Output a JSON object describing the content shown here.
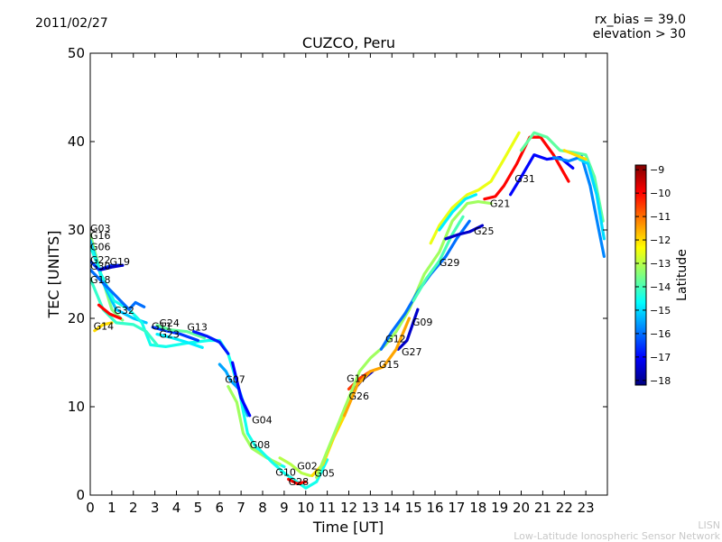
{
  "header": {
    "date": "2011/02/27",
    "rx_bias": "rx_bias = 39.0",
    "elevation": "elevation > 30",
    "title": "CUZCO, Peru"
  },
  "watermark": {
    "line1": "LISN",
    "line2": "Low-Latitude Ionospheric Sensor Network"
  },
  "chart_data": {
    "type": "scatter",
    "title": "CUZCO, Peru",
    "xlabel": "Time [UT]",
    "ylabel": "TEC [UNITS]",
    "xlim": [
      0,
      24
    ],
    "ylim": [
      0,
      50
    ],
    "xticks": [
      0,
      1,
      2,
      3,
      4,
      5,
      6,
      7,
      8,
      9,
      10,
      11,
      12,
      13,
      14,
      15,
      16,
      17,
      18,
      19,
      20,
      21,
      22,
      23
    ],
    "yticks": [
      0,
      10,
      20,
      30,
      40,
      50
    ],
    "grid": false,
    "colorbar": {
      "label": "Latitude",
      "range": [
        -18.2,
        -8.8
      ],
      "ticks": [
        -9,
        -10,
        -11,
        -12,
        -13,
        -14,
        -15,
        -16,
        -17,
        -18
      ],
      "tick_labels": [
        "−9",
        "−10",
        "−11",
        "−12",
        "−13",
        "−14",
        "−15",
        "−16",
        "−17",
        "−18"
      ],
      "colormap": "jet"
    },
    "series": [
      {
        "name": "G03",
        "lat": -13.5,
        "label_at": [
          0.0,
          29.8
        ],
        "points": [
          [
            0,
            29.5
          ],
          [
            0.5,
            25
          ],
          [
            1,
            21
          ],
          [
            1.5,
            19.8
          ]
        ]
      },
      {
        "name": "G16",
        "lat": -15.2,
        "label_at": [
          0.0,
          29.0
        ],
        "points": [
          [
            0,
            28.8
          ],
          [
            0.6,
            24
          ],
          [
            1.2,
            21
          ],
          [
            2,
            20
          ],
          [
            2.6,
            19.5
          ]
        ]
      },
      {
        "name": "G06",
        "lat": -14.5,
        "label_at": [
          0.0,
          27.7
        ],
        "points": [
          [
            0,
            28.2
          ],
          [
            0.5,
            25
          ],
          [
            1.1,
            22
          ],
          [
            1.8,
            21
          ],
          [
            2.4,
            19.5
          ],
          [
            2.8,
            17
          ],
          [
            3.5,
            16.8
          ],
          [
            4.5,
            17.2
          ],
          [
            5.5,
            17.5
          ],
          [
            6,
            17.5
          ],
          [
            6.4,
            16
          ],
          [
            6.9,
            12
          ],
          [
            7.3,
            7
          ],
          [
            7.8,
            5
          ],
          [
            8.5,
            3.8
          ],
          [
            9,
            3.2
          ]
        ]
      },
      {
        "name": "G22",
        "lat": -16.5,
        "label_at": [
          0.0,
          26.2
        ],
        "points": [
          [
            0,
            26.5
          ],
          [
            0.4,
            25.5
          ],
          [
            1,
            26
          ],
          [
            1.5,
            26
          ]
        ]
      },
      {
        "name": "G30",
        "lat": -16.0,
        "label_at": [
          0.0,
          25.5
        ],
        "points": [
          [
            0,
            25.5
          ],
          [
            0.6,
            24
          ],
          [
            1.2,
            22.5
          ],
          [
            1.8,
            21
          ],
          [
            2.1,
            21.8
          ],
          [
            2.5,
            21.3
          ]
        ]
      },
      {
        "name": "G19",
        "lat": -17.5,
        "label_at": [
          0.9,
          26.0
        ],
        "points": [
          [
            0.5,
            25.5
          ],
          [
            1,
            25.8
          ],
          [
            1.5,
            26
          ]
        ]
      },
      {
        "name": "G18",
        "lat": -14.2,
        "label_at": [
          0.0,
          24.0
        ],
        "points": [
          [
            0,
            24.5
          ],
          [
            0.6,
            21
          ],
          [
            1.2,
            19.5
          ],
          [
            2,
            19.3
          ],
          [
            2.6,
            18.5
          ],
          [
            3.1,
            17
          ]
        ]
      },
      {
        "name": "G14",
        "lat": -12.0,
        "label_at": [
          0.15,
          18.7
        ],
        "points": [
          [
            0.2,
            18.6
          ],
          [
            0.6,
            19.3
          ],
          [
            1,
            19.5
          ]
        ]
      },
      {
        "name": "G32",
        "lat": -10.0,
        "label_at": [
          1.1,
          20.5
        ],
        "points": [
          [
            0.4,
            21.5
          ],
          [
            0.9,
            20.5
          ],
          [
            1.4,
            20
          ]
        ]
      },
      {
        "name": "G11",
        "lat": -16.5,
        "label_at": [
          2.85,
          18.7
        ],
        "points": [
          [
            2.9,
            19
          ],
          [
            3.5,
            18.6
          ],
          [
            4.2,
            18.2
          ],
          [
            5,
            17.5
          ]
        ]
      },
      {
        "name": "G24",
        "lat": -13.8,
        "label_at": [
          3.2,
          19.1
        ],
        "points": [
          [
            3.1,
            19.2
          ],
          [
            3.7,
            18.7
          ],
          [
            4.5,
            18.5
          ],
          [
            5.3,
            17.8
          ]
        ]
      },
      {
        "name": "G23",
        "lat": -14.8,
        "label_at": [
          3.2,
          17.8
        ],
        "points": [
          [
            3.1,
            18.2
          ],
          [
            3.8,
            17.8
          ],
          [
            4.6,
            17.2
          ],
          [
            5.2,
            16.7
          ]
        ]
      },
      {
        "name": "G13",
        "lat": -16.8,
        "label_at": [
          4.5,
          18.6
        ],
        "points": [
          [
            4.8,
            18.5
          ],
          [
            5.4,
            18
          ],
          [
            6,
            17.3
          ],
          [
            6.4,
            16
          ]
        ]
      },
      {
        "name": "G07",
        "lat": -15.5,
        "label_at": [
          6.25,
          12.7
        ],
        "points": [
          [
            6,
            14.8
          ],
          [
            6.3,
            14
          ],
          [
            6.5,
            13
          ],
          [
            6.9,
            12
          ],
          [
            7.3,
            9
          ]
        ]
      },
      {
        "name": "G04",
        "lat": -17.0,
        "label_at": [
          7.5,
          8.1
        ],
        "points": [
          [
            6.6,
            15
          ],
          [
            7,
            11
          ],
          [
            7.4,
            9
          ]
        ]
      },
      {
        "name": "G08",
        "lat": -13.2,
        "label_at": [
          7.4,
          5.3
        ],
        "points": [
          [
            6.4,
            12.3
          ],
          [
            6.8,
            10.5
          ],
          [
            7.1,
            7
          ],
          [
            7.5,
            5.3
          ],
          [
            8.2,
            4.2
          ],
          [
            8.8,
            3.5
          ]
        ]
      },
      {
        "name": "G10",
        "lat": -14.5,
        "label_at": [
          8.6,
          2.2
        ],
        "points": [
          [
            7.8,
            5.3
          ],
          [
            8.4,
            3.8
          ],
          [
            9,
            2.5
          ],
          [
            9.6,
            1.5
          ],
          [
            10,
            0.8
          ],
          [
            10.5,
            1.5
          ],
          [
            11,
            4
          ]
        ]
      },
      {
        "name": "G02",
        "lat": -13.0,
        "label_at": [
          9.6,
          2.9
        ],
        "points": [
          [
            8.8,
            4.2
          ],
          [
            9.3,
            3.5
          ],
          [
            9.8,
            2.5
          ],
          [
            10.2,
            2.2
          ]
        ]
      },
      {
        "name": "G28",
        "lat": -10.0,
        "label_at": [
          9.2,
          1.1
        ],
        "points": [
          [
            9.2,
            1.8
          ],
          [
            9.6,
            1.3
          ],
          [
            10,
            1.5
          ]
        ]
      },
      {
        "name": "G05",
        "lat": -12.0,
        "label_at": [
          10.4,
          2.1
        ],
        "points": [
          [
            10.3,
            2.2
          ],
          [
            10.8,
            3.5
          ],
          [
            11.3,
            6.5
          ],
          [
            11.8,
            9
          ]
        ]
      },
      {
        "name": "G17",
        "lat": -10.5,
        "label_at": [
          11.9,
          12.8
        ],
        "points": [
          [
            12,
            12
          ],
          [
            12.5,
            13.2
          ],
          [
            13,
            14
          ]
        ]
      },
      {
        "name": "G26",
        "lat": -17.5,
        "label_at": [
          12.0,
          10.8
        ],
        "points": [
          [
            12.1,
            11.5
          ],
          [
            12.6,
            13
          ],
          [
            13.1,
            14
          ]
        ]
      },
      {
        "name": "G12",
        "lat": -13.2,
        "label_at": [
          13.7,
          17.3
        ],
        "points": [
          [
            10.5,
            2
          ],
          [
            11,
            5
          ],
          [
            11.5,
            8
          ],
          [
            12,
            11
          ],
          [
            12.5,
            14
          ],
          [
            13,
            15.5
          ],
          [
            13.7,
            17
          ],
          [
            14.2,
            18.5
          ],
          [
            14.8,
            21
          ],
          [
            15.5,
            25
          ],
          [
            16.2,
            27.5
          ],
          [
            16.8,
            31
          ],
          [
            17.5,
            33
          ],
          [
            18,
            33.2
          ],
          [
            18.6,
            33
          ]
        ]
      },
      {
        "name": "G27",
        "lat": -17.5,
        "label_at": [
          14.45,
          15.8
        ],
        "points": [
          [
            14.3,
            16.5
          ],
          [
            14.7,
            17.5
          ],
          [
            15.2,
            21
          ]
        ]
      },
      {
        "name": "G15",
        "lat": -11.5,
        "label_at": [
          13.4,
          14.4
        ],
        "points": [
          [
            11.8,
            9
          ],
          [
            12.4,
            12.5
          ],
          [
            13,
            14
          ],
          [
            13.6,
            14.5
          ],
          [
            14.2,
            16.5
          ],
          [
            14.8,
            20
          ]
        ]
      },
      {
        "name": "G09",
        "lat": -16.0,
        "label_at": [
          14.95,
          19.2
        ],
        "points": [
          [
            13.5,
            16.5
          ],
          [
            14,
            18.5
          ],
          [
            14.6,
            20.5
          ],
          [
            15.2,
            23
          ],
          [
            15.8,
            25
          ],
          [
            16.5,
            27
          ],
          [
            17,
            29
          ],
          [
            17.6,
            31
          ]
        ]
      },
      {
        "name": "G29",
        "lat": -14.0,
        "label_at": [
          16.2,
          25.9
        ],
        "points": [
          [
            15,
            22
          ],
          [
            15.6,
            24.5
          ],
          [
            16.2,
            26.5
          ],
          [
            16.8,
            29.5
          ],
          [
            17.3,
            31.5
          ]
        ]
      },
      {
        "name": "G25",
        "lat": -17.5,
        "label_at": [
          17.8,
          29.5
        ],
        "points": [
          [
            16.5,
            29
          ],
          [
            17.1,
            29.5
          ],
          [
            17.6,
            29.8
          ],
          [
            18.2,
            30.5
          ]
        ]
      },
      {
        "name": "G21",
        "lat": -10.0,
        "label_at": [
          18.55,
          32.6
        ],
        "points": [
          [
            18.3,
            33.5
          ],
          [
            18.8,
            33.8
          ],
          [
            19.2,
            35
          ],
          [
            19.8,
            37.5
          ],
          [
            20.4,
            40.5
          ],
          [
            20.9,
            40.5
          ],
          [
            21.5,
            38.5
          ],
          [
            22.2,
            35.5
          ]
        ]
      },
      {
        "name": "G31",
        "lat": -17.0,
        "label_at": [
          19.7,
          35.4
        ],
        "points": [
          [
            19.5,
            34
          ],
          [
            20,
            36
          ],
          [
            20.6,
            38.5
          ],
          [
            21.2,
            38
          ],
          [
            21.8,
            38.2
          ],
          [
            22.4,
            37
          ]
        ]
      },
      {
        "name": "",
        "lat": -12.5,
        "points": [
          [
            15.8,
            28.5
          ],
          [
            16.2,
            30.5
          ],
          [
            16.8,
            32.5
          ],
          [
            17.5,
            34
          ],
          [
            18,
            34.5
          ],
          [
            18.6,
            35.5
          ],
          [
            19.2,
            38
          ],
          [
            19.9,
            41
          ]
        ]
      },
      {
        "name": "",
        "lat": -14.8,
        "points": [
          [
            16.2,
            30
          ],
          [
            16.8,
            32
          ],
          [
            17.4,
            33.5
          ],
          [
            17.9,
            34
          ]
        ]
      },
      {
        "name": "",
        "lat": -13.8,
        "points": [
          [
            20,
            39
          ],
          [
            20.6,
            41
          ],
          [
            21.2,
            40.5
          ],
          [
            21.8,
            39
          ],
          [
            22.4,
            38.8
          ],
          [
            23,
            38.5
          ],
          [
            23.4,
            36
          ],
          [
            23.8,
            31
          ]
        ]
      },
      {
        "name": "",
        "lat": -15.8,
        "points": [
          [
            21.5,
            38.2
          ],
          [
            22.2,
            37.8
          ],
          [
            22.8,
            38.3
          ],
          [
            23.2,
            35
          ],
          [
            23.6,
            30
          ],
          [
            23.85,
            27
          ]
        ]
      },
      {
        "name": "",
        "lat": -15.0,
        "points": [
          [
            22.7,
            38
          ],
          [
            23.1,
            37.5
          ],
          [
            23.5,
            34
          ],
          [
            23.85,
            29
          ]
        ]
      },
      {
        "name": "",
        "lat": -12.0,
        "points": [
          [
            22,
            39
          ],
          [
            22.5,
            38.5
          ],
          [
            23,
            38
          ]
        ]
      }
    ]
  }
}
